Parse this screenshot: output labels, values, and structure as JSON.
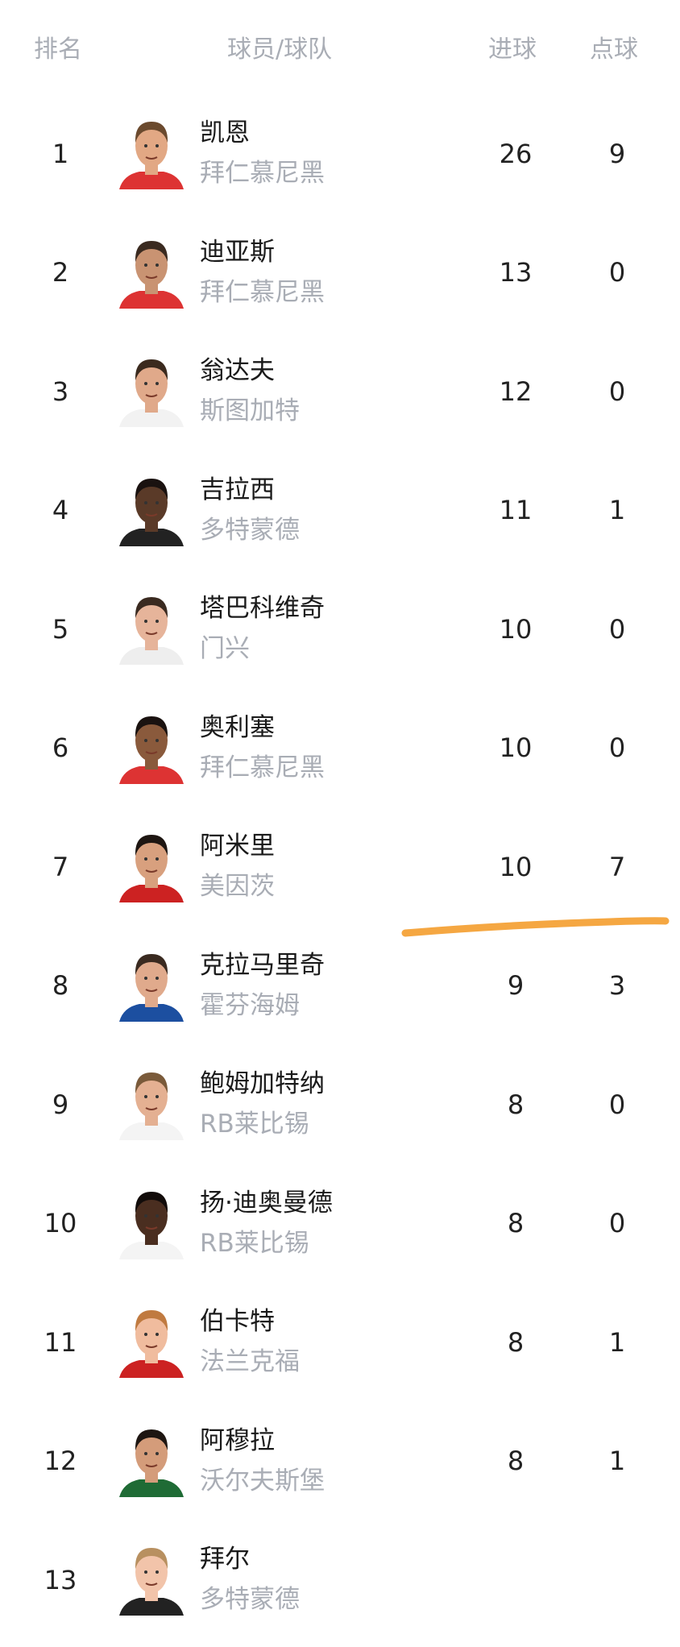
{
  "header": {
    "rank": "排名",
    "player_team": "球员/球队",
    "goals": "进球",
    "penalties": "点球"
  },
  "rows": [
    {
      "rank": "1",
      "name": "凯恩",
      "team": "拜仁慕尼黑",
      "goals": "26",
      "penalties": "9",
      "skin": "#e2a884",
      "hair": "#6b4a2e",
      "kit": "#d33"
    },
    {
      "rank": "2",
      "name": "迪亚斯",
      "team": "拜仁慕尼黑",
      "goals": "13",
      "penalties": "0",
      "skin": "#c99372",
      "hair": "#3a2a20",
      "kit": "#d33"
    },
    {
      "rank": "3",
      "name": "翁达夫",
      "team": "斯图加特",
      "goals": "12",
      "penalties": "0",
      "skin": "#e0a98a",
      "hair": "#3b2a1e",
      "kit": "#f2f2f2"
    },
    {
      "rank": "4",
      "name": "吉拉西",
      "team": "多特蒙德",
      "goals": "11",
      "penalties": "1",
      "skin": "#5a3a28",
      "hair": "#1a1210",
      "kit": "#222"
    },
    {
      "rank": "5",
      "name": "塔巴科维奇",
      "team": "门兴",
      "goals": "10",
      "penalties": "0",
      "skin": "#e6b49a",
      "hair": "#3a2a20",
      "kit": "#eee"
    },
    {
      "rank": "6",
      "name": "奥利塞",
      "team": "拜仁慕尼黑",
      "goals": "10",
      "penalties": "0",
      "skin": "#8a5a3c",
      "hair": "#1a1210",
      "kit": "#d33"
    },
    {
      "rank": "7",
      "name": "阿米里",
      "team": "美因茨",
      "goals": "10",
      "penalties": "7",
      "skin": "#d8a07e",
      "hair": "#1e1612",
      "kit": "#c22"
    },
    {
      "rank": "8",
      "name": "克拉马里奇",
      "team": "霍芬海姆",
      "goals": "9",
      "penalties": "3",
      "skin": "#e0aa8c",
      "hair": "#3a2a20",
      "kit": "#1c4fa0"
    },
    {
      "rank": "9",
      "name": "鲍姆加特纳",
      "team": "RB莱比锡",
      "goals": "8",
      "penalties": "0",
      "skin": "#e4b092",
      "hair": "#7a5a3a",
      "kit": "#f4f4f4"
    },
    {
      "rank": "10",
      "name": "扬·迪奥曼德",
      "team": "RB莱比锡",
      "goals": "8",
      "penalties": "0",
      "skin": "#4a2e20",
      "hair": "#120c0a",
      "kit": "#f4f4f4"
    },
    {
      "rank": "11",
      "name": "伯卡特",
      "team": "法兰克福",
      "goals": "8",
      "penalties": "1",
      "skin": "#f0bc9e",
      "hair": "#c07a40",
      "kit": "#c22"
    },
    {
      "rank": "12",
      "name": "阿穆拉",
      "team": "沃尔夫斯堡",
      "goals": "8",
      "penalties": "1",
      "skin": "#d49c7a",
      "hair": "#1e1612",
      "kit": "#1f6b35"
    },
    {
      "rank": "13",
      "name": "拜尔",
      "team": "多特蒙德",
      "goals": "",
      "penalties": "",
      "skin": "#f2c4aa",
      "hair": "#b89060",
      "kit": "#222"
    }
  ],
  "annotation": {
    "color": "#f5a742"
  }
}
